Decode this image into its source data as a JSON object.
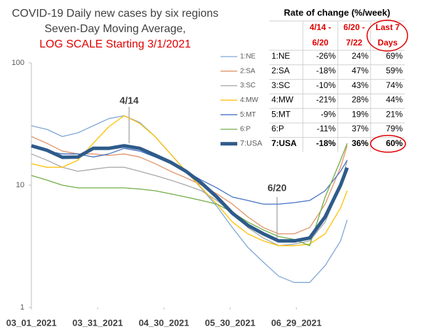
{
  "chart_data": {
    "type": "line",
    "title": [
      "COVID-19 Daily new cases by six regions",
      "Seven-Day Moving Average,",
      "LOG SCALE Starting 3/1/2021"
    ],
    "annotations": [
      "4/14",
      "6/20"
    ],
    "x": [
      "2021-03-01",
      "2021-03-08",
      "2021-03-15",
      "2021-03-22",
      "2021-03-29",
      "2021-04-05",
      "2021-04-12",
      "2021-04-19",
      "2021-04-26",
      "2021-05-03",
      "2021-05-10",
      "2021-05-17",
      "2021-05-24",
      "2021-05-31",
      "2021-06-07",
      "2021-06-14",
      "2021-06-21",
      "2021-06-28",
      "2021-07-05",
      "2021-07-12",
      "2021-07-19",
      "2021-07-22"
    ],
    "xlim": [
      "2021-03-01",
      "2021-07-25"
    ],
    "xticks": [
      {
        "value": "2021-03-01",
        "label": "03_01_2021"
      },
      {
        "value": "2021-03-31",
        "label": "03_31_2021"
      },
      {
        "value": "2021-04-30",
        "label": "04_30_2021"
      },
      {
        "value": "2021-05-30",
        "label": "05_30_2021"
      },
      {
        "value": "2021-06-29",
        "label": "06_29_2021"
      }
    ],
    "ylim": [
      1,
      100
    ],
    "yticks": [
      1,
      10,
      100
    ],
    "log_scale": true,
    "series": [
      {
        "name": "1:NE",
        "color": "#7fa7d6",
        "values": [
          30.6,
          28.6,
          25,
          26.8,
          30.6,
          35,
          37,
          32.6,
          25,
          18,
          13,
          9.4,
          6.7,
          4.5,
          3.1,
          2.35,
          1.8,
          1.6,
          1.6,
          2.2,
          3.5,
          5.2
        ]
      },
      {
        "name": "2:SA",
        "color": "#e0956a",
        "values": [
          25,
          22,
          19,
          18,
          18,
          17.5,
          18,
          17,
          15,
          13,
          11.5,
          10,
          8.5,
          7,
          5.5,
          4.5,
          4,
          4,
          4.5,
          7,
          14,
          21
        ]
      },
      {
        "name": "3:SC",
        "color": "#a8a8a8",
        "values": [
          18,
          16,
          14,
          13,
          13.5,
          14,
          14,
          13,
          12,
          11,
          10,
          9,
          7.5,
          6,
          4.5,
          3.7,
          3.2,
          3.3,
          3.5,
          5,
          10,
          16
        ]
      },
      {
        "name": "4:MW",
        "color": "#ffc000",
        "values": [
          15,
          14,
          14,
          16,
          22,
          30,
          37,
          32,
          25,
          18,
          13,
          9.5,
          7,
          5,
          4,
          3.5,
          3.2,
          3.2,
          3.3,
          4,
          6.5,
          9
        ]
      },
      {
        "name": "5:MT",
        "color": "#4472c4",
        "values": [
          21,
          19,
          18,
          18,
          17,
          18,
          20,
          19,
          17,
          15,
          13,
          11,
          9.5,
          8,
          7.5,
          7,
          7,
          7.2,
          7.5,
          9,
          13,
          16
        ]
      },
      {
        "name": "6:P",
        "color": "#70ad47",
        "values": [
          12,
          11,
          10,
          9.5,
          9.5,
          9.5,
          9.5,
          9.3,
          9,
          8.5,
          8,
          7.5,
          7,
          6,
          5,
          4.3,
          3.8,
          3.6,
          3.2,
          8,
          16,
          22
        ]
      },
      {
        "name": "7:USA",
        "color": "#2e5b8a",
        "values": [
          21,
          19.3,
          16.9,
          17,
          20,
          20,
          21,
          20,
          17.6,
          15.4,
          13,
          10.4,
          8,
          5.9,
          4.7,
          4,
          3.5,
          3.5,
          3.7,
          5.5,
          10,
          13.9
        ]
      }
    ]
  },
  "table": {
    "title": "Rate of change (%/week)",
    "columns": [
      "4/14 - 6/20",
      "6/20 - 7/22",
      "Last 7 Days"
    ],
    "rows": [
      [
        "1:NE",
        "-26%",
        "24%",
        "69%"
      ],
      [
        "2:SA",
        "-18%",
        "47%",
        "59%"
      ],
      [
        "3:SC",
        "-10%",
        "43%",
        "74%"
      ],
      [
        "4:MW",
        "-21%",
        "28%",
        "44%"
      ],
      [
        "5:MT",
        "-9%",
        "19%",
        "21%"
      ],
      [
        "6:P",
        "-11%",
        "37%",
        "79%"
      ],
      [
        "7:USA",
        "-18%",
        "36%",
        "60%"
      ]
    ]
  }
}
